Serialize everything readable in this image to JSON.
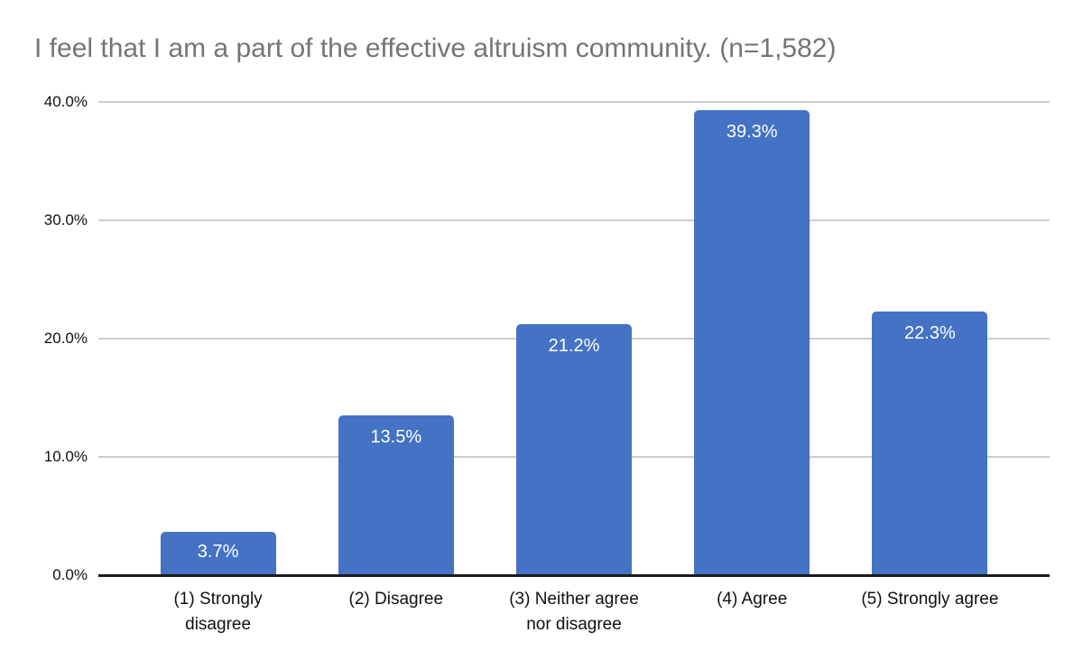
{
  "chart_data": {
    "type": "bar",
    "title": "I feel that I am a part of the effective altruism community. (n=1,582)",
    "categories": [
      "(1) Strongly\ndisagree",
      "(2) Disagree",
      "(3) Neither agree\nnor disagree",
      "(4) Agree",
      "(5) Strongly agree"
    ],
    "values": [
      3.7,
      13.5,
      21.2,
      39.3,
      22.3
    ],
    "data_labels": [
      "3.7%",
      "13.5%",
      "21.2%",
      "39.3%",
      "22.3%"
    ],
    "xlabel": "",
    "ylabel": "",
    "ylim": [
      0,
      40
    ],
    "y_ticks": [
      {
        "value": 40,
        "label": "40.0%"
      },
      {
        "value": 30,
        "label": "30.0%"
      },
      {
        "value": 20,
        "label": "20.0%"
      },
      {
        "value": 10,
        "label": "10.0%"
      },
      {
        "value": 0,
        "label": "0.0%"
      }
    ],
    "grid": "horizontal",
    "legend": "none",
    "colors": {
      "bar": "#4472C4",
      "data_label": "#FFFFFF",
      "gridline": "#CCCCCC",
      "axis_line": "#1A1A1A",
      "title": "#757575",
      "tick_label": "#111111"
    }
  }
}
